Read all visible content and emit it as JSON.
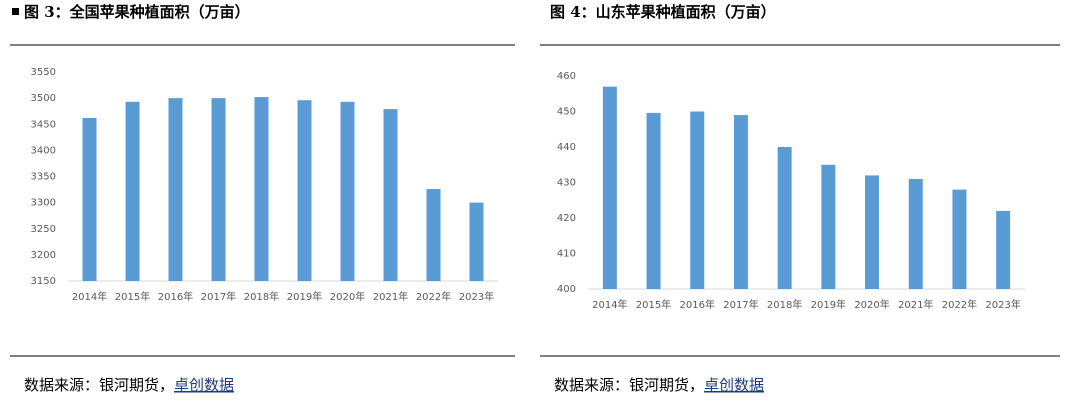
{
  "chart_data": [
    {
      "type": "bar",
      "title": "图 3：全国苹果种植面积（万亩）",
      "categories": [
        "2014年",
        "2015年",
        "2016年",
        "2017年",
        "2018年",
        "2019年",
        "2020年",
        "2021年",
        "2022年",
        "2023年"
      ],
      "values": [
        3462,
        3493,
        3500,
        3500,
        3502,
        3496,
        3493,
        3479,
        3326,
        3300
      ],
      "color": "#5b9bd5",
      "ylim": [
        3150,
        3550
      ],
      "yticks": [
        3150,
        3200,
        3250,
        3300,
        3350,
        3400,
        3450,
        3500,
        3550
      ],
      "source": "数据来源：银河期货，",
      "source_link": "卓创数据"
    },
    {
      "type": "bar",
      "title": "图 4：山东苹果种植面积（万亩）",
      "categories": [
        "2014年",
        "2015年",
        "2016年",
        "2017年",
        "2018年",
        "2019年",
        "2020年",
        "2021年",
        "2022年",
        "2023年"
      ],
      "values": [
        457,
        449.6,
        450,
        449,
        440,
        435,
        432,
        431,
        428,
        422
      ],
      "color": "#5b9bd5",
      "ylim": [
        400,
        460
      ],
      "yticks": [
        400,
        410,
        420,
        430,
        440,
        450,
        460
      ],
      "source": "数据来源：银河期货，",
      "source_link": "卓创数据"
    }
  ]
}
